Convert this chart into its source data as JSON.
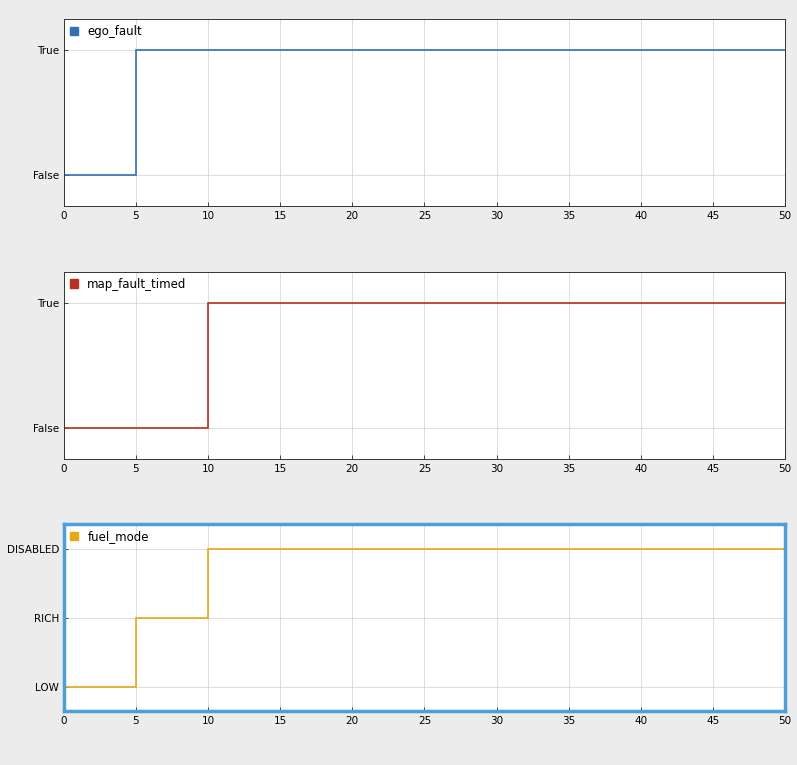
{
  "ego_fault": {
    "label": "ego_fault",
    "color": "#3070b8",
    "x": [
      0,
      5,
      5,
      50
    ],
    "y": [
      0,
      0,
      1,
      1
    ],
    "yticks": [
      0,
      1
    ],
    "yticklabels": [
      "False",
      "True"
    ],
    "ylim": [
      -0.25,
      1.25
    ]
  },
  "map_fault_timed": {
    "label": "map_fault_timed",
    "color": "#b83020",
    "x": [
      0,
      10,
      10,
      50
    ],
    "y": [
      0,
      0,
      1,
      1
    ],
    "yticks": [
      0,
      1
    ],
    "yticklabels": [
      "False",
      "True"
    ],
    "ylim": [
      -0.25,
      1.25
    ]
  },
  "fuel_mode": {
    "label": "fuel_mode",
    "color": "#e6a817",
    "x": [
      0,
      5,
      5,
      10,
      10,
      50
    ],
    "y": [
      0,
      0,
      1,
      1,
      2,
      2
    ],
    "yticks": [
      0,
      1,
      2
    ],
    "yticklabels": [
      "LOW",
      "RICH",
      "DISABLED"
    ],
    "ylim": [
      -0.35,
      2.35
    ],
    "border_color": "#4d9fd6"
  },
  "xlim": [
    0,
    50
  ],
  "xticks": [
    0,
    5,
    10,
    15,
    20,
    25,
    30,
    35,
    40,
    45,
    50
  ],
  "background_color": "#ececec",
  "plot_bg_color": "#ffffff",
  "grid_color": "#d0d0d0",
  "tick_fontsize": 7.5,
  "legend_fontsize": 8.5
}
